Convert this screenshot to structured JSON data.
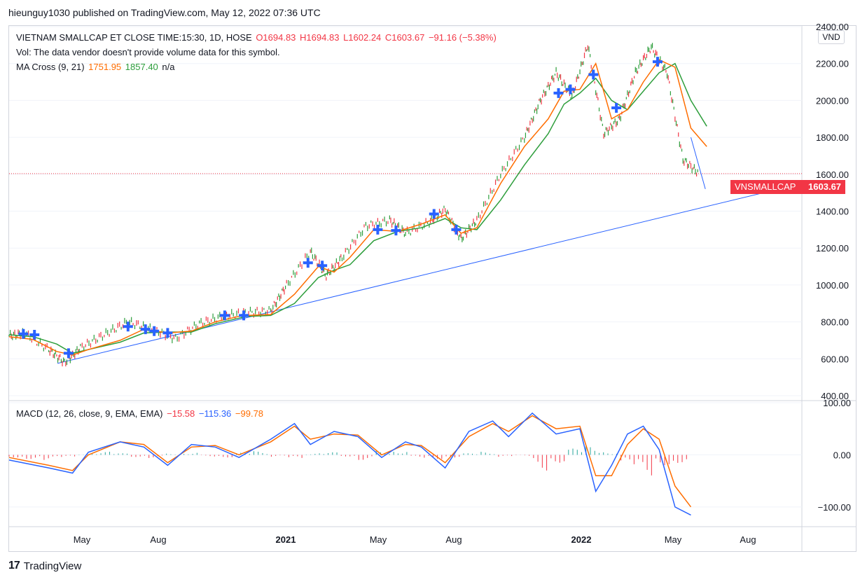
{
  "header": {
    "publisher": "hieunguy1030 published on TradingView.com, May 12, 2022 07:36 UTC"
  },
  "legend": {
    "title": "VIETNAM SMALLCAP ET CLOSE TIME:15:30, 1D, HOSE",
    "o": "O1694.83",
    "h": "H1694.83",
    "l": "L1602.24",
    "c": "C1603.67",
    "change": "−91.16 (−5.38%)",
    "vol": "Vol: The data vendor doesn't provide volume data for this symbol.",
    "ma_label": "MA Cross (9, 21)",
    "ma_fast": "1751.95",
    "ma_slow": "1857.40",
    "ma_na": "n/a"
  },
  "macd_legend": {
    "label": "MACD (12, 26, close, 9, EMA, EMA)",
    "hist": "−15.58",
    "macd": "−115.36",
    "signal": "−99.78"
  },
  "currency": "VND",
  "price_tag": {
    "symbol": "VNSMALLCAP",
    "value": "1603.67"
  },
  "footer": {
    "brand": "TradingView",
    "logo": "tradingview-logo-icon"
  },
  "colors": {
    "fast_ma": "#ff6d00",
    "slow_ma": "#2e9e3c",
    "trendline": "#2962ff",
    "down": "#f23645",
    "up": "#2e9e3c",
    "cross_marker": "#2962ff"
  },
  "chart_data": [
    {
      "type": "line",
      "panel": "price",
      "ylim": [
        400,
        2400
      ],
      "y_ticks": [
        "2400.00",
        "2200.00",
        "2000.00",
        "1800.00",
        "1600.00",
        "1400.00",
        "1200.00",
        "1000.00",
        "800.00",
        "600.00",
        "400.00"
      ],
      "x_tick_labels": [
        "May",
        "Aug",
        "2021",
        "May",
        "Aug",
        "2022",
        "May",
        "Aug"
      ],
      "last_price": 1603.67,
      "series": [
        {
          "name": "MA Cross (9, 21)",
          "role": "fast",
          "points": [
            [
              0,
              720
            ],
            [
              0.03,
              705
            ],
            [
              0.06,
              640
            ],
            [
              0.08,
              620
            ],
            [
              0.1,
              650
            ],
            [
              0.14,
              700
            ],
            [
              0.17,
              760
            ],
            [
              0.2,
              740
            ],
            [
              0.23,
              750
            ],
            [
              0.26,
              800
            ],
            [
              0.29,
              830
            ],
            [
              0.3,
              835
            ],
            [
              0.33,
              840
            ],
            [
              0.36,
              950
            ],
            [
              0.39,
              1100
            ],
            [
              0.41,
              1070
            ],
            [
              0.43,
              1150
            ],
            [
              0.46,
              1300
            ],
            [
              0.49,
              1290
            ],
            [
              0.52,
              1330
            ],
            [
              0.55,
              1380
            ],
            [
              0.57,
              1280
            ],
            [
              0.59,
              1310
            ],
            [
              0.62,
              1550
            ],
            [
              0.65,
              1750
            ],
            [
              0.68,
              1900
            ],
            [
              0.7,
              2050
            ],
            [
              0.72,
              2060
            ],
            [
              0.74,
              2200
            ],
            [
              0.76,
              1900
            ],
            [
              0.78,
              1950
            ],
            [
              0.8,
              2100
            ],
            [
              0.82,
              2220
            ],
            [
              0.84,
              2180
            ],
            [
              0.86,
              1850
            ],
            [
              0.88,
              1750
            ]
          ]
        },
        {
          "name": "MA Cross (9, 21)",
          "role": "slow",
          "points": [
            [
              0,
              730
            ],
            [
              0.03,
              720
            ],
            [
              0.06,
              680
            ],
            [
              0.08,
              630
            ],
            [
              0.1,
              650
            ],
            [
              0.14,
              690
            ],
            [
              0.17,
              740
            ],
            [
              0.2,
              745
            ],
            [
              0.23,
              745
            ],
            [
              0.26,
              790
            ],
            [
              0.29,
              820
            ],
            [
              0.3,
              830
            ],
            [
              0.33,
              835
            ],
            [
              0.36,
              900
            ],
            [
              0.39,
              1040
            ],
            [
              0.41,
              1080
            ],
            [
              0.43,
              1110
            ],
            [
              0.46,
              1240
            ],
            [
              0.49,
              1290
            ],
            [
              0.52,
              1310
            ],
            [
              0.55,
              1360
            ],
            [
              0.57,
              1310
            ],
            [
              0.59,
              1300
            ],
            [
              0.62,
              1460
            ],
            [
              0.65,
              1650
            ],
            [
              0.68,
              1820
            ],
            [
              0.7,
              1980
            ],
            [
              0.72,
              2040
            ],
            [
              0.74,
              2120
            ],
            [
              0.76,
              2000
            ],
            [
              0.78,
              1950
            ],
            [
              0.8,
              2050
            ],
            [
              0.82,
              2150
            ],
            [
              0.84,
              2200
            ],
            [
              0.86,
              2000
            ],
            [
              0.88,
              1860
            ]
          ]
        },
        {
          "name": "price",
          "role": "bars",
          "points": [
            [
              0,
              725
            ],
            [
              0.02,
              735
            ],
            [
              0.05,
              650
            ],
            [
              0.07,
              580
            ],
            [
              0.09,
              660
            ],
            [
              0.12,
              730
            ],
            [
              0.15,
              800
            ],
            [
              0.18,
              760
            ],
            [
              0.21,
              710
            ],
            [
              0.24,
              790
            ],
            [
              0.27,
              830
            ],
            [
              0.3,
              850
            ],
            [
              0.33,
              860
            ],
            [
              0.35,
              1000
            ],
            [
              0.38,
              1180
            ],
            [
              0.4,
              1050
            ],
            [
              0.42,
              1150
            ],
            [
              0.45,
              1320
            ],
            [
              0.48,
              1350
            ],
            [
              0.5,
              1280
            ],
            [
              0.53,
              1340
            ],
            [
              0.55,
              1410
            ],
            [
              0.57,
              1250
            ],
            [
              0.59,
              1350
            ],
            [
              0.62,
              1600
            ],
            [
              0.65,
              1800
            ],
            [
              0.67,
              2000
            ],
            [
              0.69,
              2150
            ],
            [
              0.71,
              2020
            ],
            [
              0.73,
              2300
            ],
            [
              0.75,
              1820
            ],
            [
              0.77,
              1900
            ],
            [
              0.79,
              2150
            ],
            [
              0.81,
              2290
            ],
            [
              0.83,
              2150
            ],
            [
              0.85,
              1680
            ],
            [
              0.87,
              1603.67
            ]
          ]
        }
      ],
      "cross_markers": [
        735,
        730,
        630,
        775,
        760,
        750,
        740,
        835,
        835,
        1120,
        1105,
        1300,
        1295,
        1385,
        1300,
        2040,
        2060,
        2140,
        1960,
        2210
      ]
    },
    {
      "type": "line",
      "panel": "macd",
      "ylim": [
        -135,
        100
      ],
      "y_ticks": [
        "100.00",
        "0.00",
        "−100.00"
      ],
      "series": [
        {
          "name": "MACD",
          "points": [
            [
              0,
              -10
            ],
            [
              0.05,
              -25
            ],
            [
              0.08,
              -35
            ],
            [
              0.1,
              5
            ],
            [
              0.14,
              25
            ],
            [
              0.17,
              15
            ],
            [
              0.2,
              -20
            ],
            [
              0.23,
              20
            ],
            [
              0.26,
              15
            ],
            [
              0.29,
              -5
            ],
            [
              0.33,
              30
            ],
            [
              0.36,
              60
            ],
            [
              0.38,
              20
            ],
            [
              0.41,
              45
            ],
            [
              0.44,
              35
            ],
            [
              0.47,
              -5
            ],
            [
              0.5,
              25
            ],
            [
              0.52,
              15
            ],
            [
              0.55,
              -25
            ],
            [
              0.58,
              45
            ],
            [
              0.61,
              65
            ],
            [
              0.63,
              35
            ],
            [
              0.66,
              80
            ],
            [
              0.69,
              40
            ],
            [
              0.72,
              50
            ],
            [
              0.74,
              -70
            ],
            [
              0.76,
              -20
            ],
            [
              0.78,
              40
            ],
            [
              0.8,
              55
            ],
            [
              0.82,
              10
            ],
            [
              0.84,
              -100
            ],
            [
              0.86,
              -115.36
            ]
          ]
        },
        {
          "name": "Signal",
          "points": [
            [
              0,
              -5
            ],
            [
              0.05,
              -20
            ],
            [
              0.08,
              -30
            ],
            [
              0.1,
              0
            ],
            [
              0.14,
              25
            ],
            [
              0.17,
              20
            ],
            [
              0.2,
              -15
            ],
            [
              0.23,
              15
            ],
            [
              0.26,
              18
            ],
            [
              0.29,
              0
            ],
            [
              0.33,
              25
            ],
            [
              0.36,
              55
            ],
            [
              0.38,
              30
            ],
            [
              0.41,
              40
            ],
            [
              0.44,
              38
            ],
            [
              0.47,
              0
            ],
            [
              0.5,
              20
            ],
            [
              0.52,
              18
            ],
            [
              0.55,
              -15
            ],
            [
              0.58,
              35
            ],
            [
              0.61,
              60
            ],
            [
              0.63,
              45
            ],
            [
              0.66,
              75
            ],
            [
              0.69,
              50
            ],
            [
              0.72,
              55
            ],
            [
              0.74,
              -40
            ],
            [
              0.76,
              -40
            ],
            [
              0.78,
              20
            ],
            [
              0.8,
              50
            ],
            [
              0.82,
              30
            ],
            [
              0.84,
              -60
            ],
            [
              0.86,
              -99.78
            ]
          ]
        }
      ],
      "histogram": [
        -5,
        -8,
        -10,
        -6,
        2,
        6,
        3,
        -4,
        -6,
        3,
        5,
        -3,
        -5,
        4,
        7,
        -4,
        -9,
        3,
        5,
        -3,
        -10,
        8,
        10,
        -6,
        -8,
        -5,
        3,
        6,
        -5,
        -2,
        -30,
        -15,
        12,
        18,
        6,
        -25,
        -40,
        -20,
        -15.58
      ]
    }
  ]
}
